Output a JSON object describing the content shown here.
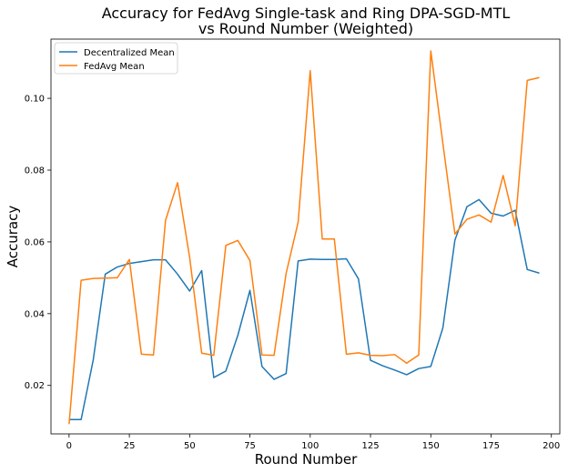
{
  "chart_data": {
    "type": "line",
    "title_line1": "Accuracy for FedAvg Single-task and Ring DPA-SGD-MTL",
    "title_line2": "vs Round Number (Weighted)",
    "xlabel": "Round Number",
    "ylabel": "Accuracy",
    "xlim": [
      -7.5,
      203.5
    ],
    "ylim": [
      0.0065,
      0.1165
    ],
    "x_ticks": [
      0,
      25,
      50,
      75,
      100,
      125,
      150,
      175,
      200
    ],
    "y_ticks": [
      0.02,
      0.04,
      0.06,
      0.08,
      0.1
    ],
    "y_tick_labels": [
      "0.02",
      "0.04",
      "0.06",
      "0.08",
      "0.10"
    ],
    "grid": false,
    "legend_position": "top-left",
    "x": [
      0,
      5,
      10,
      15,
      20,
      25,
      30,
      35,
      40,
      45,
      50,
      55,
      60,
      65,
      70,
      75,
      80,
      85,
      90,
      95,
      100,
      105,
      110,
      115,
      120,
      125,
      130,
      135,
      140,
      145,
      150,
      155,
      160,
      165,
      170,
      175,
      180,
      185,
      190,
      195
    ],
    "series": [
      {
        "name": "Decentralized Mean",
        "color": "#1f77b4",
        "values": [
          0.0105,
          0.0105,
          0.027,
          0.051,
          0.053,
          0.054,
          0.0545,
          0.055,
          0.055,
          0.051,
          0.0463,
          0.052,
          0.0222,
          0.024,
          0.034,
          0.0465,
          0.0253,
          0.0217,
          0.0233,
          0.0547,
          0.0552,
          0.0551,
          0.0551,
          0.0553,
          0.0497,
          0.027,
          0.0255,
          0.0243,
          0.023,
          0.0247,
          0.0253,
          0.036,
          0.0605,
          0.0698,
          0.0718,
          0.068,
          0.0672,
          0.0688,
          0.0523,
          0.0513
        ]
      },
      {
        "name": "FedAvg Mean",
        "color": "#ff7f0e",
        "values": [
          0.0092,
          0.0493,
          0.0498,
          0.0499,
          0.05,
          0.0551,
          0.0287,
          0.0285,
          0.066,
          0.0765,
          0.0557,
          0.029,
          0.0284,
          0.059,
          0.0604,
          0.0548,
          0.0285,
          0.0284,
          0.0512,
          0.0655,
          0.1077,
          0.0608,
          0.0608,
          0.0287,
          0.0291,
          0.0284,
          0.0283,
          0.0286,
          0.0262,
          0.0285,
          0.1132,
          0.0875,
          0.0622,
          0.0663,
          0.0675,
          0.0655,
          0.0785,
          0.0645,
          0.105,
          0.1058
        ]
      }
    ]
  }
}
